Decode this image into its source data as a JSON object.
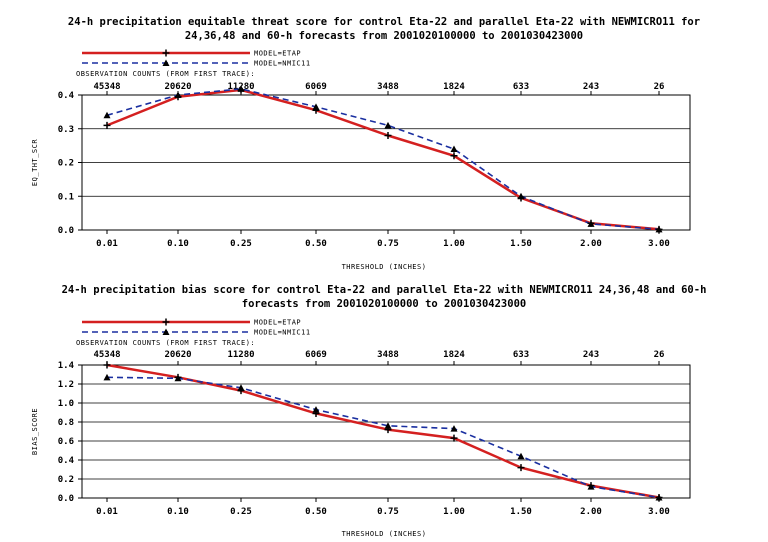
{
  "chart_data": [
    {
      "type": "line",
      "title_line1": "24-h precipitation equitable threat score for control Eta-22 and parallel Eta-22 with NEWMICRO11 for",
      "title_line2": "24,36,48 and 60-h forecasts from 2001020100000 to 2001030423000",
      "legend_1": "MODEL=ETAP",
      "legend_2": "MODEL=NMIC11",
      "counts_label": "OBSERVATION COUNTS (FROM FIRST TRACE):",
      "counts": [
        "45348",
        "20620",
        "11280",
        "6069",
        "3488",
        "1824",
        "633",
        "243",
        "26"
      ],
      "categories": [
        "0.01",
        "0.10",
        "0.25",
        "0.50",
        "0.75",
        "1.00",
        "1.50",
        "2.00",
        "3.00"
      ],
      "xlabel": "THRESHOLD (INCHES)",
      "ylabel": "EQ_THT_SCR",
      "ylim": [
        0,
        0.4
      ],
      "yticks": [
        "0.0",
        "0.1",
        "0.2",
        "0.3",
        "0.4"
      ],
      "grid": true,
      "series": [
        {
          "name": "MODEL=ETAP",
          "color": "#d42020",
          "style": "solid",
          "values": [
            0.31,
            0.395,
            0.415,
            0.355,
            0.28,
            0.22,
            0.095,
            0.02,
            0.002
          ]
        },
        {
          "name": "MODEL=NMIC11",
          "color": "#1a2fa0",
          "style": "dashed",
          "values": [
            0.34,
            0.4,
            0.418,
            0.365,
            0.31,
            0.24,
            0.1,
            0.018,
            0.002
          ]
        }
      ]
    },
    {
      "type": "line",
      "title_line1": "24-h precipitation bias score for control Eta-22 and parallel Eta-22 with NEWMICRO11 24,36,48 and 60-h",
      "title_line2": "forecasts from 2001020100000 to 2001030423000",
      "legend_1": "MODEL=ETAP",
      "legend_2": "MODEL=NMIC11",
      "counts_label": "OBSERVATION COUNTS (FROM FIRST TRACE):",
      "counts": [
        "45348",
        "20620",
        "11280",
        "6069",
        "3488",
        "1824",
        "633",
        "243",
        "26"
      ],
      "categories": [
        "0.01",
        "0.10",
        "0.25",
        "0.50",
        "0.75",
        "1.00",
        "1.50",
        "2.00",
        "3.00"
      ],
      "xlabel": "THRESHOLD (INCHES)",
      "ylabel": "BIAS_SCORE",
      "ylim": [
        0,
        1.4
      ],
      "yticks": [
        "0.0",
        "0.2",
        "0.4",
        "0.6",
        "0.8",
        "1.0",
        "1.2",
        "1.4"
      ],
      "grid": true,
      "series": [
        {
          "name": "MODEL=ETAP",
          "color": "#d42020",
          "style": "solid",
          "values": [
            1.4,
            1.27,
            1.13,
            0.89,
            0.72,
            0.63,
            0.32,
            0.13,
            0.005
          ]
        },
        {
          "name": "MODEL=NMIC11",
          "color": "#1a2fa0",
          "style": "dashed",
          "values": [
            1.27,
            1.26,
            1.16,
            0.93,
            0.76,
            0.73,
            0.44,
            0.12,
            0.005
          ]
        }
      ]
    }
  ]
}
